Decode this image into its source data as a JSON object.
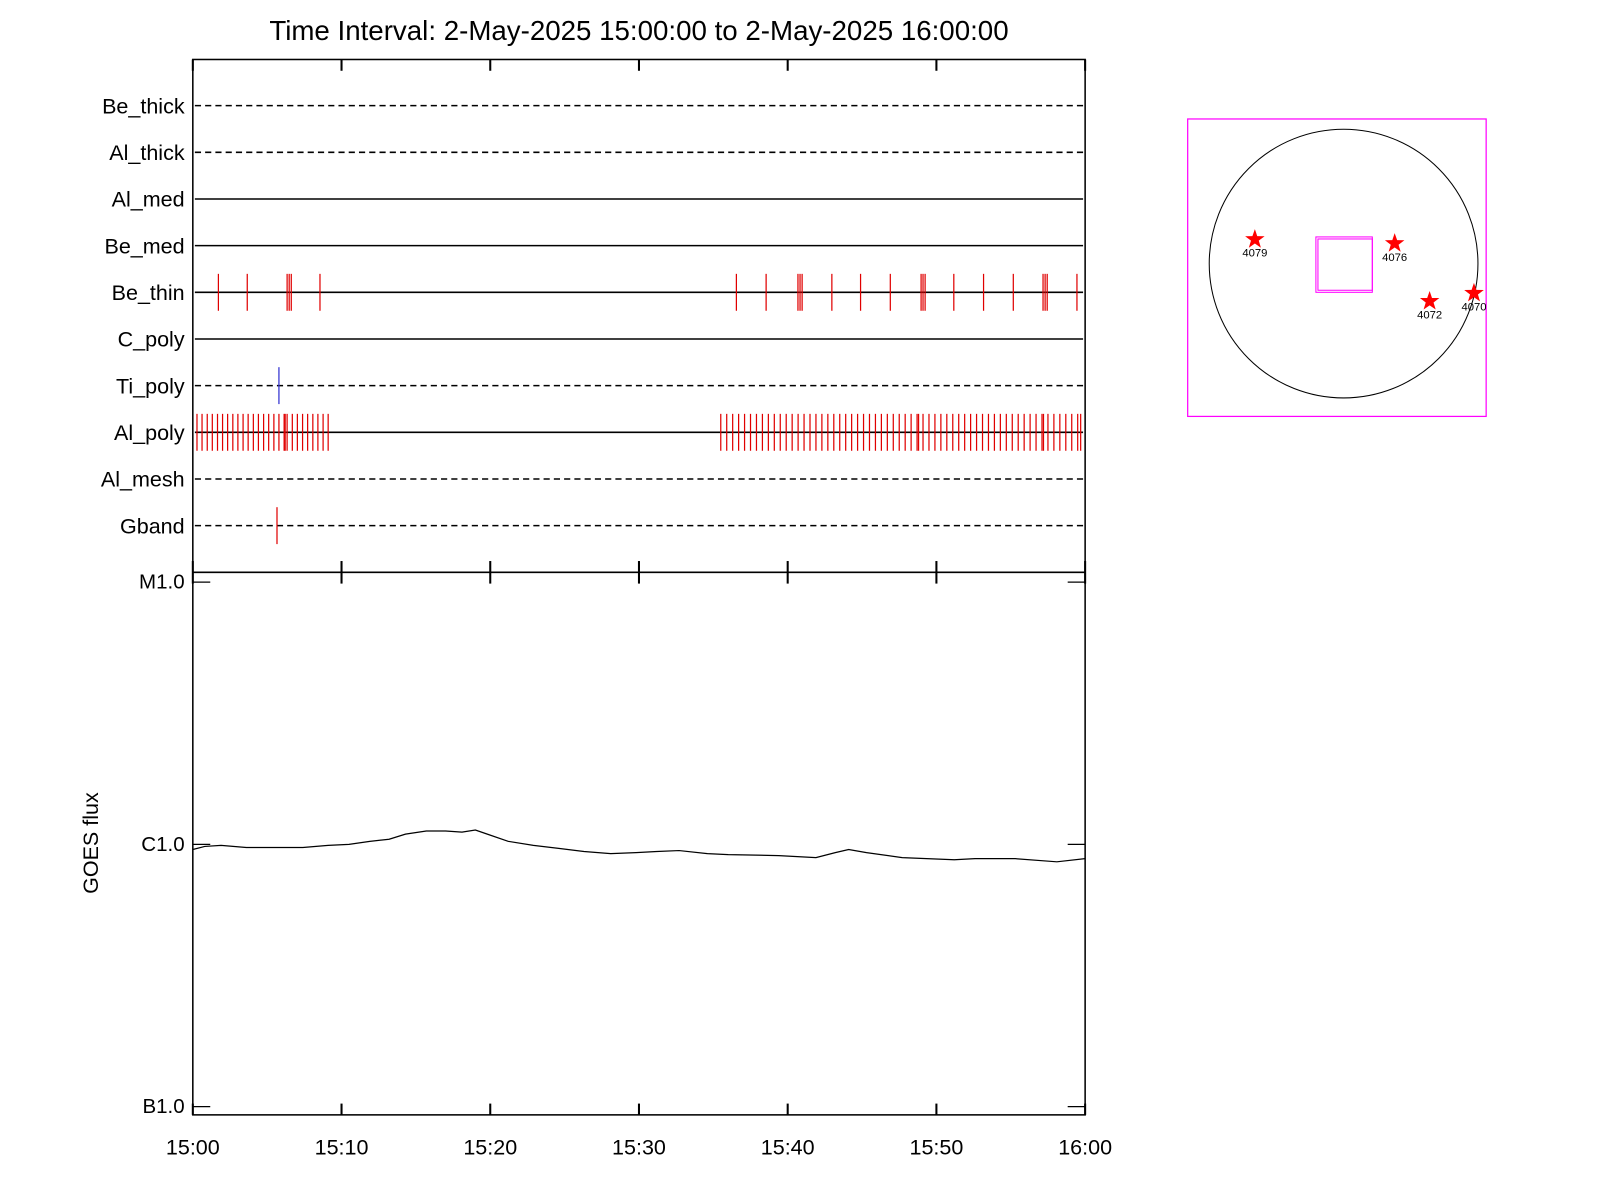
{
  "chart_data": [
    {
      "type": "events",
      "title": "Time Interval:  2-May-2025 15:00:00 to  2-May-2025 16:00:00",
      "categories": [
        "Be_thick",
        "Al_thick",
        "Al_med",
        "Be_med",
        "Be_thin",
        "C_poly",
        "Ti_poly",
        "Al_poly",
        "Al_mesh",
        "Gband"
      ],
      "line_styles": [
        "dashed",
        "dashed",
        "solid",
        "solid",
        "solid",
        "solid",
        "dashed",
        "solid",
        "dashed",
        "dashed"
      ],
      "event_colors": [
        "#e00000",
        "#e00000",
        "#e00000",
        "#e00000",
        "#e00000",
        "#e00000",
        "#3030d0",
        "#e00000",
        "#e00000",
        "#e00000"
      ],
      "events": [
        [],
        [],
        [],
        [],
        [
          1.72,
          3.66,
          6.34,
          6.48,
          6.62,
          8.55,
          36.55,
          38.55,
          40.69,
          40.83,
          40.97,
          42.97,
          44.9,
          46.9,
          48.97,
          49.1,
          49.24,
          51.17,
          53.17,
          55.17,
          57.17,
          57.31,
          57.45,
          59.45
        ],
        [],
        [
          5.79
        ],
        [
          0.28,
          0.62,
          0.97,
          1.31,
          1.66,
          2.0,
          2.34,
          2.69,
          3.03,
          3.38,
          3.72,
          4.07,
          4.41,
          4.76,
          5.1,
          5.45,
          5.79,
          6.14,
          6.21,
          6.34,
          6.69,
          7.03,
          7.38,
          7.72,
          8.07,
          8.41,
          8.76,
          9.1,
          35.5,
          35.9,
          36.3,
          36.7,
          37.1,
          37.5,
          37.9,
          38.3,
          38.7,
          39.1,
          39.5,
          39.9,
          40.3,
          40.7,
          41.1,
          41.5,
          41.9,
          42.3,
          42.7,
          43.1,
          43.5,
          43.9,
          44.3,
          44.7,
          45.1,
          45.5,
          45.9,
          46.3,
          46.7,
          47.1,
          47.5,
          47.9,
          48.3,
          48.7,
          48.8,
          49.1,
          49.5,
          49.9,
          50.3,
          50.7,
          51.1,
          51.5,
          51.9,
          52.3,
          52.7,
          53.1,
          53.5,
          53.9,
          54.3,
          54.7,
          55.1,
          55.5,
          55.9,
          56.3,
          56.7,
          57.1,
          57.2,
          57.5,
          57.9,
          58.3,
          58.7,
          59.1,
          59.5,
          59.7
        ],
        [],
        [
          5.66
        ]
      ]
    },
    {
      "type": "line",
      "ylabel": "GOES flux",
      "log_scale": true,
      "color": "#000000",
      "x": [
        0,
        0.8,
        1.9,
        3.6,
        7.4,
        9.1,
        10.5,
        11.9,
        13.2,
        14.3,
        15.7,
        17.0,
        18.1,
        19.0,
        19.8,
        21.2,
        22.9,
        24.6,
        26.3,
        28.1,
        29.8,
        31.2,
        32.7,
        34.6,
        36.0,
        39.4,
        41.9,
        43.2,
        44.1,
        45.3,
        47.7,
        51.2,
        52.6,
        55.3,
        58.1,
        60
      ],
      "values": [
        9.56e-07,
        9.82e-07,
        9.91e-07,
        9.73e-07,
        9.73e-07,
        9.91e-07,
        1e-06,
        1.027e-06,
        1.046e-06,
        1.094e-06,
        1.124e-06,
        1.124e-06,
        1.114e-06,
        1.134e-06,
        1.094e-06,
        1.027e-06,
        9.91e-07,
        9.65e-07,
        9.39e-07,
        9.22e-07,
        9.3e-07,
        9.39e-07,
        9.47e-07,
        9.22e-07,
        9.14e-07,
        9.06e-07,
        8.9e-07,
        9.3e-07,
        9.56e-07,
        9.3e-07,
        8.9e-07,
        8.74e-07,
        8.82e-07,
        8.82e-07,
        8.58e-07,
        8.82e-07
      ],
      "xlim": [
        0,
        60
      ],
      "xticks": [
        {
          "value": 0,
          "label": "15:00"
        },
        {
          "value": 10,
          "label": "15:10"
        },
        {
          "value": 20,
          "label": "15:20"
        },
        {
          "value": 30,
          "label": "15:30"
        },
        {
          "value": 40,
          "label": "15:40"
        },
        {
          "value": 50,
          "label": "15:50"
        },
        {
          "value": 60,
          "label": "16:00"
        }
      ],
      "ylim": [
        9.3e-08,
        1.09e-05
      ],
      "yticks": [
        {
          "value": 1e-07,
          "label": "B1.0"
        },
        {
          "value": 1e-06,
          "label": "C1.0"
        },
        {
          "value": 1e-05,
          "label": "M1.0"
        }
      ]
    },
    {
      "type": "disk",
      "labels": [
        "4079",
        "4076",
        "4072",
        "4070"
      ],
      "x": [
        -0.66,
        0.38,
        0.64,
        0.97
      ],
      "y": [
        0.18,
        0.15,
        -0.28,
        -0.22
      ],
      "color": "#ff0000",
      "xlim": [
        -1.11,
        1.11
      ],
      "ylim": [
        -1.11,
        1.11
      ]
    }
  ]
}
